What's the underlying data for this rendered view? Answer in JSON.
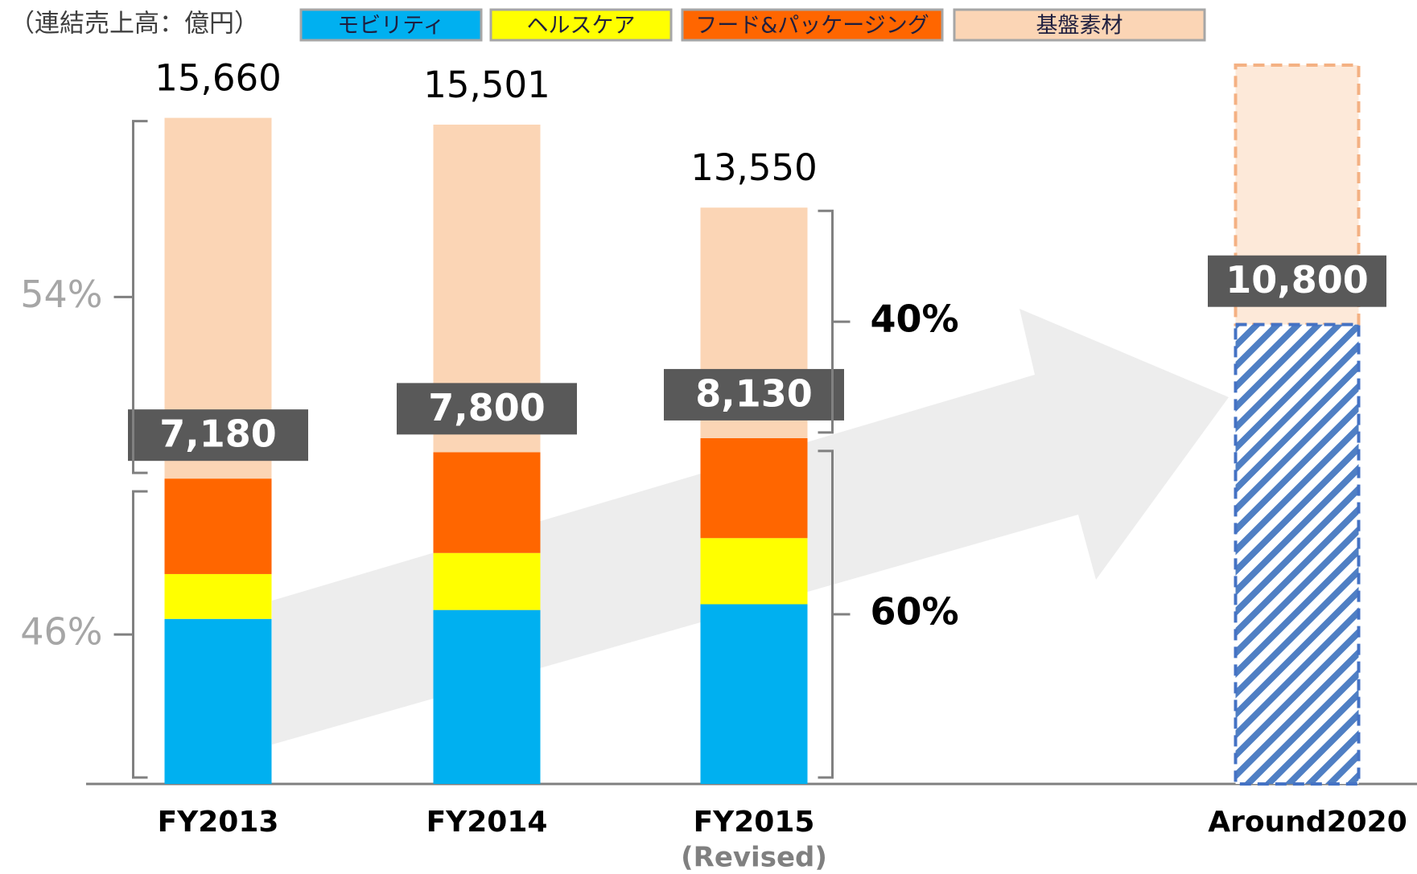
{
  "chart_data": {
    "type": "stacked_bar",
    "unit_label": "（連結売上高：億円）",
    "categories": [
      "FY2013",
      "FY2014",
      "FY2015",
      "Around2020"
    ],
    "category_notes": [
      null,
      null,
      "(Revised)",
      null
    ],
    "series": [
      {
        "name": "モビリティ",
        "color": "#00b0f0",
        "values": [
          3880,
          4090,
          4225,
          null
        ]
      },
      {
        "name": "ヘルスケア",
        "color": "#ffff00",
        "values": [
          1055,
          1340,
          1555,
          null
        ]
      },
      {
        "name": "フード&パッケージング",
        "color": "#ff6600",
        "values": [
          2245,
          2370,
          2350,
          null
        ]
      },
      {
        "name": "基盤素材",
        "color": "#fbd5b5",
        "values": [
          8480,
          7701,
          5420,
          null
        ]
      }
    ],
    "totals": {
      "values": [
        15660,
        15501,
        13550,
        null
      ],
      "value_labels": [
        "15,660",
        "15,501",
        "13,550",
        null
      ]
    },
    "growth": {
      "values": [
        7180,
        7800,
        8130,
        10800
      ],
      "value_labels": [
        "7,180",
        "7,800",
        "8,130",
        "10,800"
      ],
      "color": "#4472c4"
    },
    "projection": {
      "base": 6100,
      "color": "#fde9d9",
      "border": "#f4b183"
    },
    "shares": [
      {
        "category": 0,
        "side": "left",
        "upper": {
          "value": 54,
          "label": "54%"
        },
        "lower": {
          "value": 46,
          "label": "46%"
        }
      },
      {
        "category": 2,
        "side": "right",
        "upper": {
          "value": 40,
          "label": "40%"
        },
        "lower": {
          "value": 60,
          "label": "60%"
        }
      }
    ]
  }
}
